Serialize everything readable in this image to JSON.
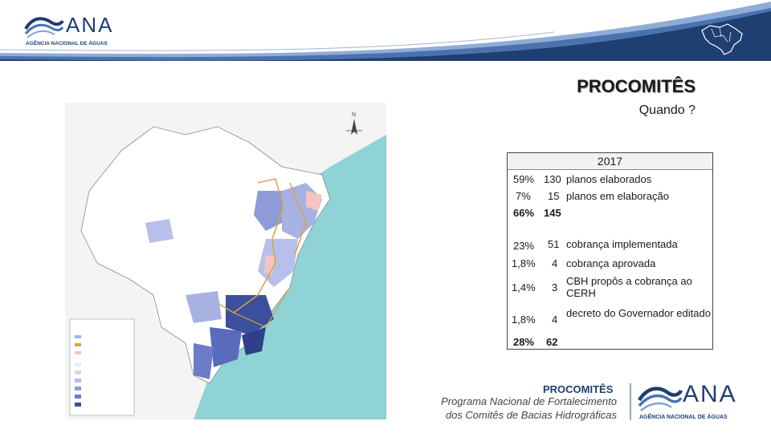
{
  "header": {
    "logo_text": "ANA",
    "logo_subtitle": "AGÊNCIA NACIONAL DE ÁGUAS",
    "map_icon": "brazil-map-icon"
  },
  "title": "PROCOMITÊS",
  "subtitle": "Quando ?",
  "panel": {
    "year": "2017",
    "rows": [
      {
        "pct": "59%",
        "num": "130",
        "desc": "planos elaborados"
      },
      {
        "pct": "7%",
        "num": "15",
        "desc": "planos em elaboração"
      },
      {
        "pct": "66%",
        "num": "145",
        "desc": ""
      },
      {
        "pct": "23%",
        "num": "51",
        "desc": "cobrança implementada"
      },
      {
        "pct": "1,8%",
        "num": "4",
        "desc": "cobrança aprovada"
      },
      {
        "pct": "1,4%",
        "num": "3",
        "desc": "CBH propôs a cobrança ao CERH"
      },
      {
        "pct": "1,8%",
        "num": "4",
        "desc": "decreto do Governador editado"
      },
      {
        "pct": "28%",
        "num": "62",
        "desc": ""
      }
    ]
  },
  "footer": {
    "title": "PROCOMITÊS",
    "line1": "Programa Nacional de Fortalecimento",
    "line2": "dos Comitês de Bacias Hidrográficas",
    "logo_text": "ANA",
    "logo_subtitle": "AGÊNCIA NACIONAL DE ÁGUAS"
  },
  "colors": {
    "brand_blue": "#1f3f73",
    "ocean": "#8fd3d6",
    "land": "#ffffff",
    "committee_dark": "#3b4f9c",
    "committee_light": "#a7b2e3",
    "committee_pink": "#f3c4c4",
    "border_orange": "#d9a441"
  }
}
